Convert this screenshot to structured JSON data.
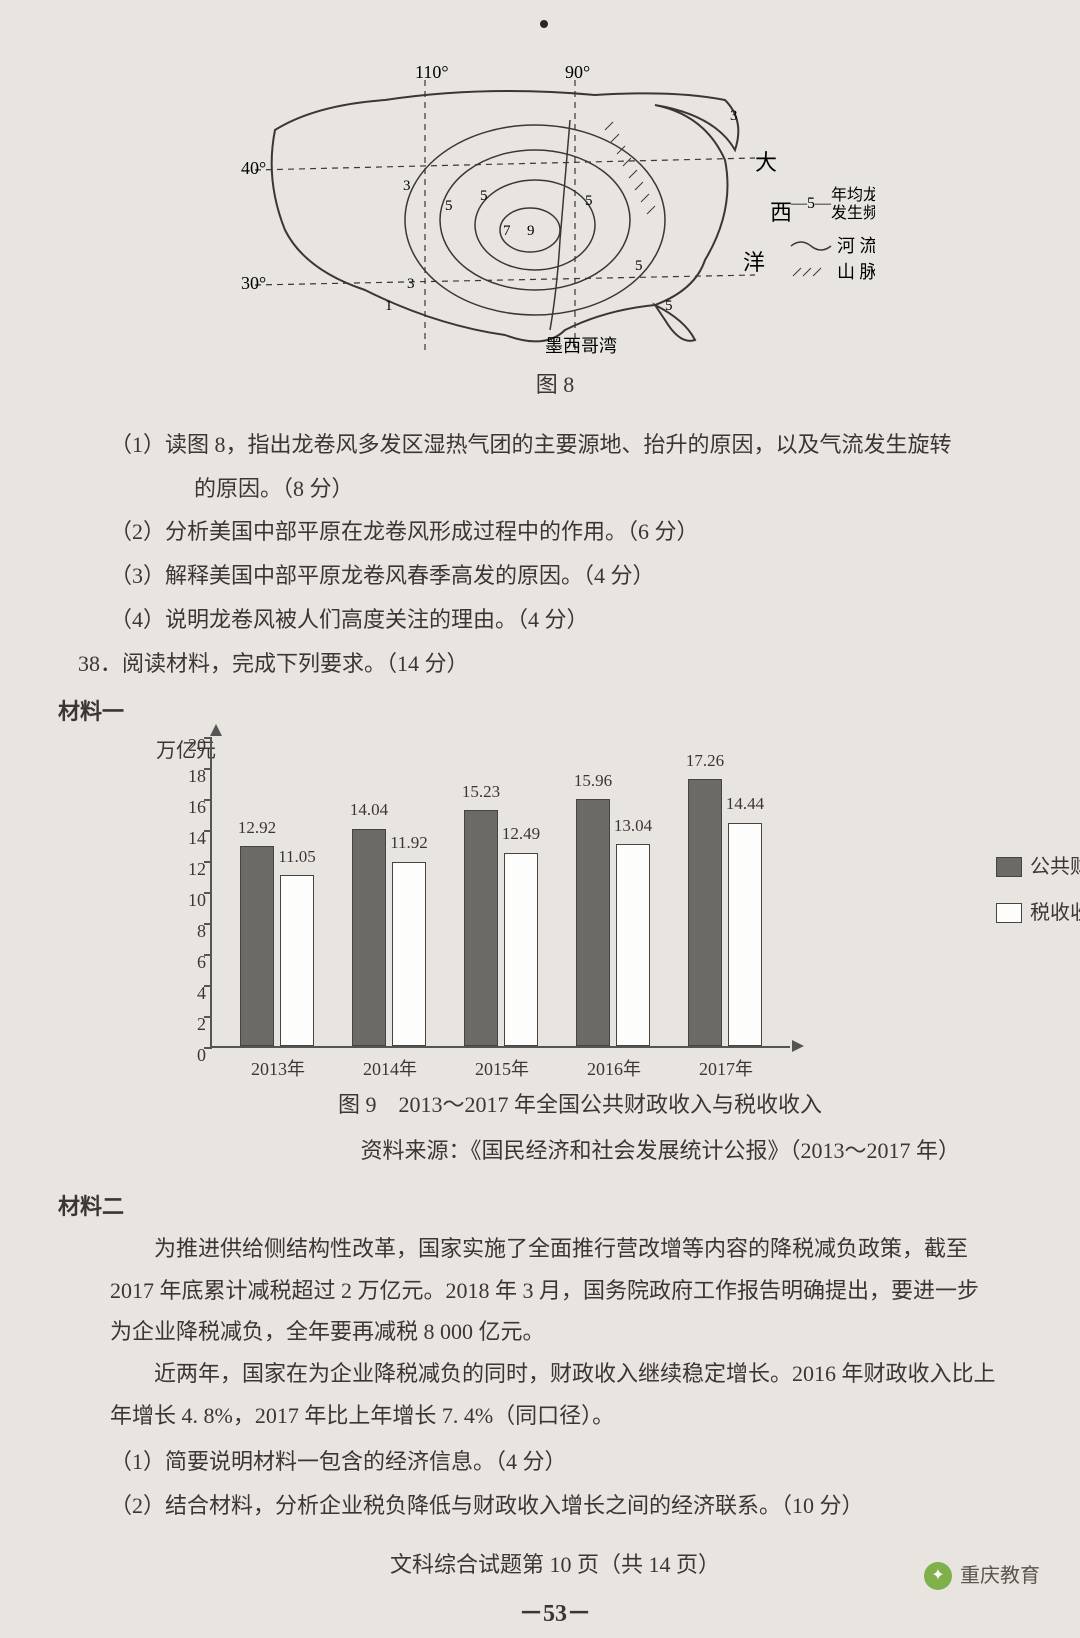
{
  "map": {
    "caption": "图 8",
    "longitudes": [
      "110°",
      "90°"
    ],
    "latitudes": [
      "40°",
      "30°"
    ],
    "ocean_labels": [
      "大",
      "西",
      "洋"
    ],
    "gulf_label": "墨西哥湾",
    "contour_values": [
      "1",
      "3",
      "5",
      "5",
      "5",
      "7",
      "9",
      "3",
      "1",
      "5",
      "3"
    ],
    "legend": {
      "line_label": "年均龙卷风\n发生频次",
      "line_sample": "—5—",
      "river_label": "河 流",
      "mountain_label": "山 脉"
    }
  },
  "questions_a": {
    "q1a": "（1）读图 8，指出龙卷风多发区湿热气团的主要源地、抬升的原因，以及气流发生旋转",
    "q1b": "的原因。（8 分）",
    "q2": "（2）分析美国中部平原在龙卷风形成过程中的作用。（6 分）",
    "q3": "（3）解释美国中部平原龙卷风春季高发的原因。（4 分）",
    "q4": "（4）说明龙卷风被人们高度关注的理由。（4 分）",
    "q38": "38．阅读材料，完成下列要求。（14 分）"
  },
  "material1_head": "材料一",
  "chart": {
    "type": "bar",
    "y_unit": "万亿元",
    "ymax": 20,
    "ytick_step": 2,
    "categories": [
      "2013年",
      "2014年",
      "2015年",
      "2016年",
      "2017年"
    ],
    "series": [
      {
        "name": "公共财政收入",
        "color": "#6b6a66",
        "values": [
          12.92,
          14.04,
          15.23,
          15.96,
          17.26
        ]
      },
      {
        "name": "税收收入",
        "color": "#fdfdfb",
        "values": [
          11.05,
          11.92,
          12.49,
          13.04,
          14.44
        ]
      }
    ],
    "caption": "图 9　2013～2017 年全国公共财政收入与税收收入",
    "source": "资料来源：《国民经济和社会发展统计公报》（2013～2017 年）",
    "axis_color": "#555555",
    "label_fontsize": 18
  },
  "material2_head": "材料二",
  "material2": {
    "p1": "为推进供给侧结构性改革，国家实施了全面推行营改增等内容的降税减负政策，截至 2017 年底累计减税超过 2 万亿元。2018 年 3 月，国务院政府工作报告明确提出，要进一步为企业降税减负，全年要再减税 8 000 亿元。",
    "p2": "近两年，国家在为企业降税减负的同时，财政收入继续稳定增长。2016 年财政收入比上年增长 4. 8%，2017 年比上年增长 7. 4%（同口径）。"
  },
  "questions_b": {
    "q1": "（1）简要说明材料一包含的经济信息。（4 分）",
    "q2": "（2）结合材料，分析企业税负降低与财政收入增长之间的经济联系。（10 分）"
  },
  "footer": {
    "line": "文科综合试题第 10 页（共 14 页）",
    "num": "－53－"
  },
  "watermark": "重庆教育"
}
